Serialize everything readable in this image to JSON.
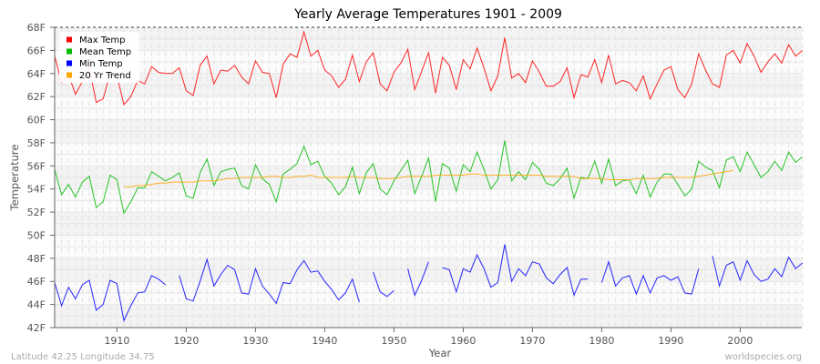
{
  "chart_data": {
    "type": "line",
    "title": "Yearly Average Temperatures 1901 - 2009",
    "xlabel": "Year",
    "ylabel": "Temperature",
    "xlim": [
      1901,
      2009
    ],
    "ylim": [
      42,
      68
    ],
    "x_ticks": [
      "1910",
      "1920",
      "1930",
      "1940",
      "1950",
      "1960",
      "1970",
      "1980",
      "1990",
      "2000"
    ],
    "y_ticks": [
      "42F",
      "44F",
      "46F",
      "48F",
      "50F",
      "52F",
      "54F",
      "56F",
      "58F",
      "60F",
      "62F",
      "64F",
      "66F",
      "68F"
    ],
    "grid": true,
    "legend_position": "top-left",
    "x_start": 1901,
    "series": [
      {
        "name": "Max Temp",
        "color": "#ff0000",
        "values": [
          65.5,
          63.2,
          63.9,
          62.2,
          63.3,
          64.5,
          61.5,
          61.8,
          64.0,
          63.8,
          61.3,
          62.0,
          63.4,
          63.1,
          64.6,
          64.1,
          64.0,
          64.0,
          64.5,
          62.5,
          62.1,
          64.7,
          65.5,
          63.1,
          64.3,
          64.2,
          64.7,
          63.7,
          63.1,
          65.1,
          64.1,
          64.0,
          61.9,
          64.8,
          65.7,
          65.4,
          67.6,
          65.5,
          66.0,
          64.3,
          63.8,
          62.8,
          63.5,
          65.6,
          63.3,
          65.0,
          65.8,
          63.1,
          62.5,
          64.1,
          64.9,
          66.1,
          62.6,
          64.2,
          65.8,
          62.3,
          65.4,
          64.7,
          62.6,
          65.2,
          64.4,
          66.2,
          64.5,
          62.5,
          63.8,
          67.1,
          63.6,
          64.0,
          63.2,
          65.1,
          64.1,
          62.9,
          62.9,
          63.3,
          64.5,
          61.9,
          63.9,
          63.7,
          65.2,
          63.2,
          65.6,
          63.1,
          63.4,
          63.2,
          62.5,
          63.8,
          61.8,
          63.1,
          64.3,
          64.6,
          62.6,
          61.9,
          63.1,
          65.7,
          64.3,
          63.1,
          62.8,
          65.6,
          66.0,
          64.9,
          66.6,
          65.5,
          64.1,
          65.0,
          65.7,
          64.9,
          66.5,
          65.5,
          66.0
        ]
      },
      {
        "name": "Mean Temp",
        "color": "#00bb00",
        "values": [
          55.7,
          53.5,
          54.4,
          53.3,
          54.6,
          55.1,
          52.4,
          52.9,
          55.2,
          54.8,
          51.9,
          52.9,
          54.1,
          54.1,
          55.5,
          55.1,
          54.7,
          55.0,
          55.4,
          53.4,
          53.2,
          55.4,
          56.6,
          54.3,
          55.5,
          55.7,
          55.8,
          54.3,
          54.0,
          56.1,
          54.9,
          54.4,
          52.9,
          55.3,
          55.7,
          56.2,
          57.7,
          56.1,
          56.4,
          55.1,
          54.5,
          53.5,
          54.2,
          55.9,
          53.6,
          55.4,
          56.2,
          54.0,
          53.5,
          54.7,
          55.6,
          56.5,
          53.6,
          55.1,
          56.7,
          52.9,
          56.2,
          55.8,
          53.8,
          56.1,
          55.5,
          57.2,
          55.7,
          54.0,
          54.8,
          58.2,
          54.7,
          55.5,
          54.8,
          56.3,
          55.7,
          54.5,
          54.3,
          54.9,
          55.8,
          53.2,
          55.0,
          54.9,
          56.4,
          54.5,
          56.6,
          54.3,
          54.7,
          54.8,
          53.6,
          55.2,
          53.3,
          54.6,
          55.3,
          55.3,
          54.4,
          53.4,
          54.0,
          56.4,
          55.9,
          55.6,
          54.1,
          56.5,
          56.8,
          55.5,
          57.2,
          56.1,
          55.0,
          55.5,
          56.4,
          55.6,
          57.2,
          56.3,
          56.8
        ]
      },
      {
        "name": "Min Temp",
        "color": "#0000ff",
        "values": [
          45.9,
          43.9,
          45.5,
          44.5,
          45.7,
          46.1,
          43.5,
          44.0,
          46.1,
          45.8,
          42.6,
          43.9,
          45.0,
          45.1,
          46.5,
          46.2,
          45.7,
          null,
          46.5,
          44.5,
          44.3,
          46.0,
          47.9,
          45.6,
          46.6,
          47.4,
          47.0,
          45.0,
          44.9,
          47.1,
          45.6,
          44.9,
          44.1,
          45.9,
          45.8,
          47.0,
          47.8,
          46.8,
          46.9,
          46.0,
          45.3,
          44.4,
          45.0,
          46.2,
          44.2,
          null,
          46.8,
          45.1,
          44.7,
          45.2,
          null,
          47.1,
          44.8,
          46.1,
          47.7,
          null,
          47.2,
          47.0,
          45.1,
          47.1,
          46.8,
          48.3,
          47.1,
          45.5,
          45.9,
          49.2,
          46.0,
          47.1,
          46.5,
          47.7,
          47.5,
          46.3,
          45.8,
          46.6,
          47.2,
          44.8,
          46.2,
          46.2,
          null,
          45.9,
          47.7,
          45.6,
          46.3,
          46.5,
          44.9,
          46.5,
          45.0,
          46.3,
          46.5,
          46.1,
          46.4,
          45.0,
          44.9,
          47.1,
          null,
          48.2,
          45.6,
          47.4,
          47.7,
          46.1,
          47.8,
          46.6,
          46.0,
          46.2,
          47.1,
          46.4,
          48.1,
          47.1,
          47.6
        ]
      },
      {
        "name": "20 Yr Trend",
        "color": "#ffa500",
        "values": [
          null,
          null,
          null,
          null,
          null,
          null,
          null,
          null,
          null,
          null,
          54.2,
          54.2,
          54.3,
          54.3,
          54.4,
          54.5,
          54.5,
          54.6,
          54.6,
          54.6,
          54.6,
          54.7,
          54.7,
          54.7,
          54.8,
          54.9,
          54.9,
          55.0,
          55.0,
          55.0,
          55.0,
          55.1,
          55.1,
          55.0,
          55.0,
          55.1,
          55.1,
          55.2,
          55.0,
          55.0,
          55.0,
          55.0,
          55.0,
          55.1,
          55.0,
          55.0,
          55.0,
          54.9,
          54.9,
          54.9,
          55.0,
          55.1,
          55.1,
          55.1,
          55.1,
          55.2,
          55.2,
          55.2,
          55.2,
          55.2,
          55.3,
          55.3,
          55.2,
          55.2,
          55.2,
          55.2,
          55.2,
          55.2,
          55.2,
          55.2,
          55.2,
          55.1,
          55.1,
          55.1,
          55.1,
          55.1,
          54.9,
          54.9,
          54.9,
          54.9,
          54.8,
          54.8,
          54.8,
          54.8,
          54.9,
          54.9,
          54.9,
          54.9,
          55.0,
          55.0,
          55.0,
          55.0,
          55.0,
          55.1,
          55.2,
          55.3,
          55.4,
          55.5,
          55.6,
          null,
          null,
          null,
          null,
          null,
          null,
          null,
          null,
          null,
          null
        ]
      }
    ]
  },
  "footer": {
    "location": "Latitude 42.25 Longitude 34.75",
    "site": "worldspecies.org"
  }
}
